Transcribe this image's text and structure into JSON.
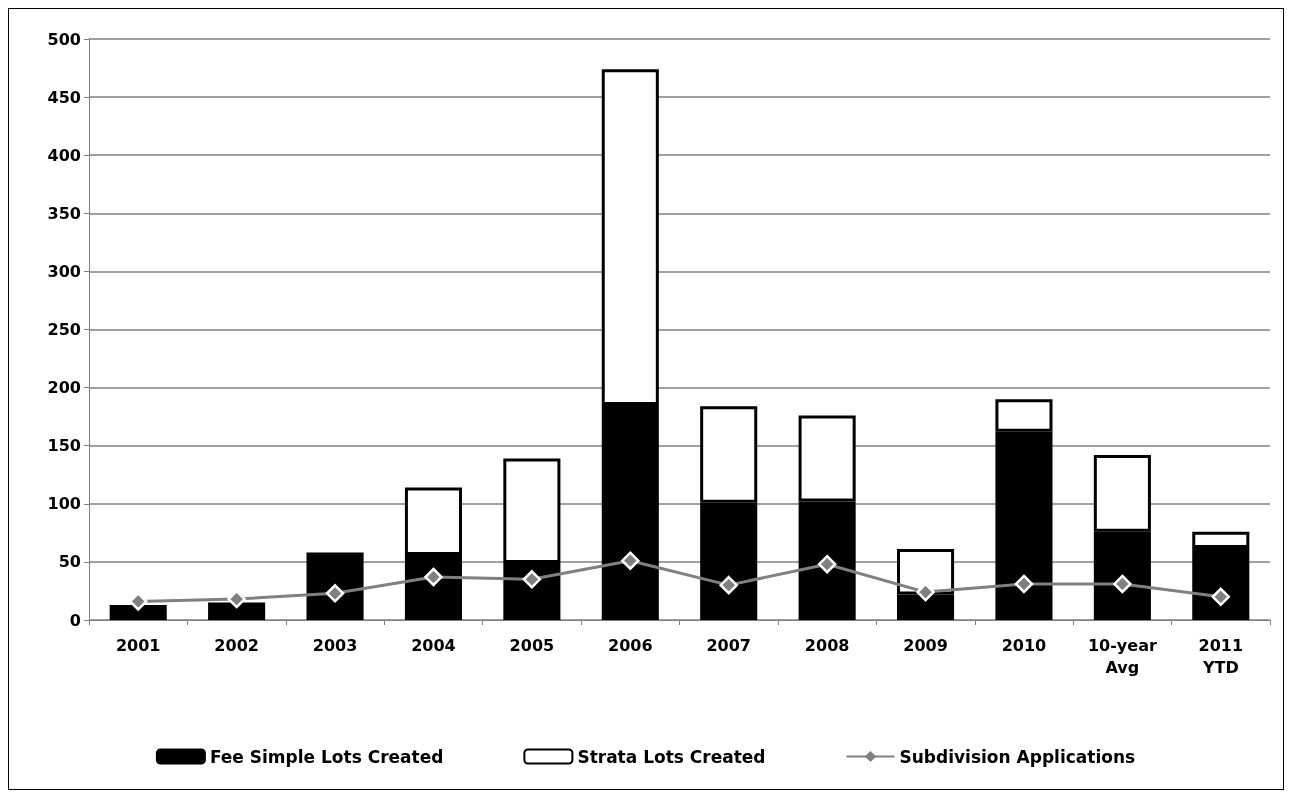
{
  "chart_data": {
    "type": "bar",
    "stacked": true,
    "categories": [
      "2001",
      "2002",
      "2003",
      "2004",
      "2005",
      "2006",
      "2007",
      "2008",
      "2009",
      "2010",
      "10-year\nAvg",
      "2011\nYTD"
    ],
    "series": [
      {
        "name": "Fee Simple Lots Created",
        "color": "#000000",
        "values": [
          13,
          12,
          58,
          56,
          49,
          185,
          101,
          102,
          22,
          162,
          76,
          62
        ]
      },
      {
        "name": "Strata Lots Created",
        "color": "#ffffff",
        "values": [
          null,
          3,
          null,
          58,
          90,
          289,
          83,
          74,
          39,
          28,
          66,
          14
        ]
      },
      {
        "name": "Subdivision Applications",
        "type": "line",
        "color": "#808080",
        "marker": "diamond",
        "values": [
          16,
          18,
          23,
          37,
          35,
          51,
          30,
          48,
          24,
          31,
          31,
          20
        ]
      }
    ],
    "ylim": [
      0,
      500
    ],
    "yticks": [
      0,
      50,
      100,
      150,
      200,
      250,
      300,
      350,
      400,
      450,
      500
    ],
    "grid": "y",
    "legend": "bottom"
  }
}
